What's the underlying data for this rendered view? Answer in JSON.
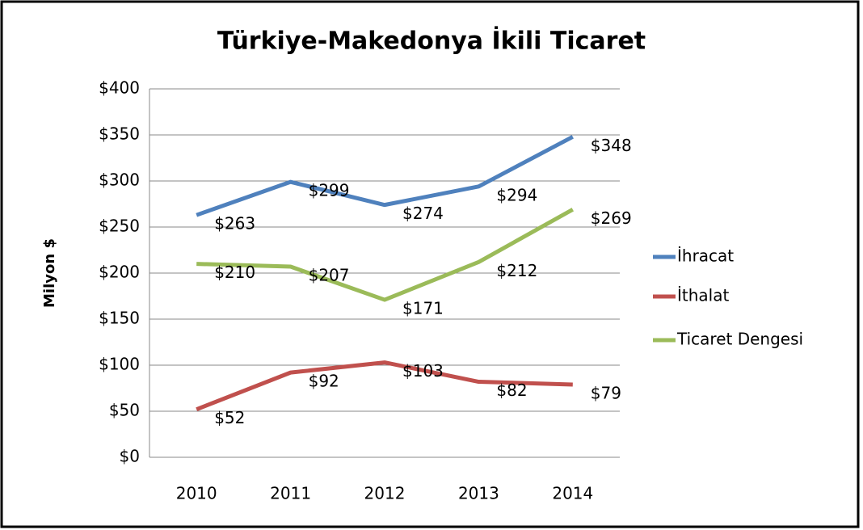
{
  "chart_data": {
    "type": "line",
    "title": "Türkiye-Makedonya İkili Ticaret",
    "y_label": "Milyon $",
    "categories": [
      "2010",
      "2011",
      "2012",
      "2013",
      "2014"
    ],
    "series": [
      {
        "name": "İhracat",
        "color": "#4f81bd",
        "values": [
          263,
          299,
          274,
          294,
          348
        ],
        "value_labels": [
          "$263",
          "$299",
          "$274",
          "$294",
          "$348"
        ]
      },
      {
        "name": "İthalat",
        "color": "#c0504d",
        "values": [
          52,
          92,
          103,
          82,
          79
        ],
        "value_labels": [
          "$52",
          "$92",
          "$103",
          "$82",
          "$79"
        ]
      },
      {
        "name": "Ticaret Dengesi",
        "color": "#9bbb59",
        "values": [
          210,
          207,
          171,
          212,
          269
        ],
        "value_labels": [
          "$210",
          "$207",
          "$171",
          "$212",
          "$269"
        ]
      }
    ],
    "ylim": [
      0,
      400
    ],
    "yticks": [
      {
        "value": 0,
        "label": "$0"
      },
      {
        "value": 50,
        "label": "$50"
      },
      {
        "value": 100,
        "label": "$100"
      },
      {
        "value": 150,
        "label": "$150"
      },
      {
        "value": 200,
        "label": "$200"
      },
      {
        "value": 250,
        "label": "$250"
      },
      {
        "value": 300,
        "label": "$300"
      },
      {
        "value": 350,
        "label": "$350"
      },
      {
        "value": 400,
        "label": "$400"
      }
    ],
    "grid": true,
    "legend": "right"
  }
}
